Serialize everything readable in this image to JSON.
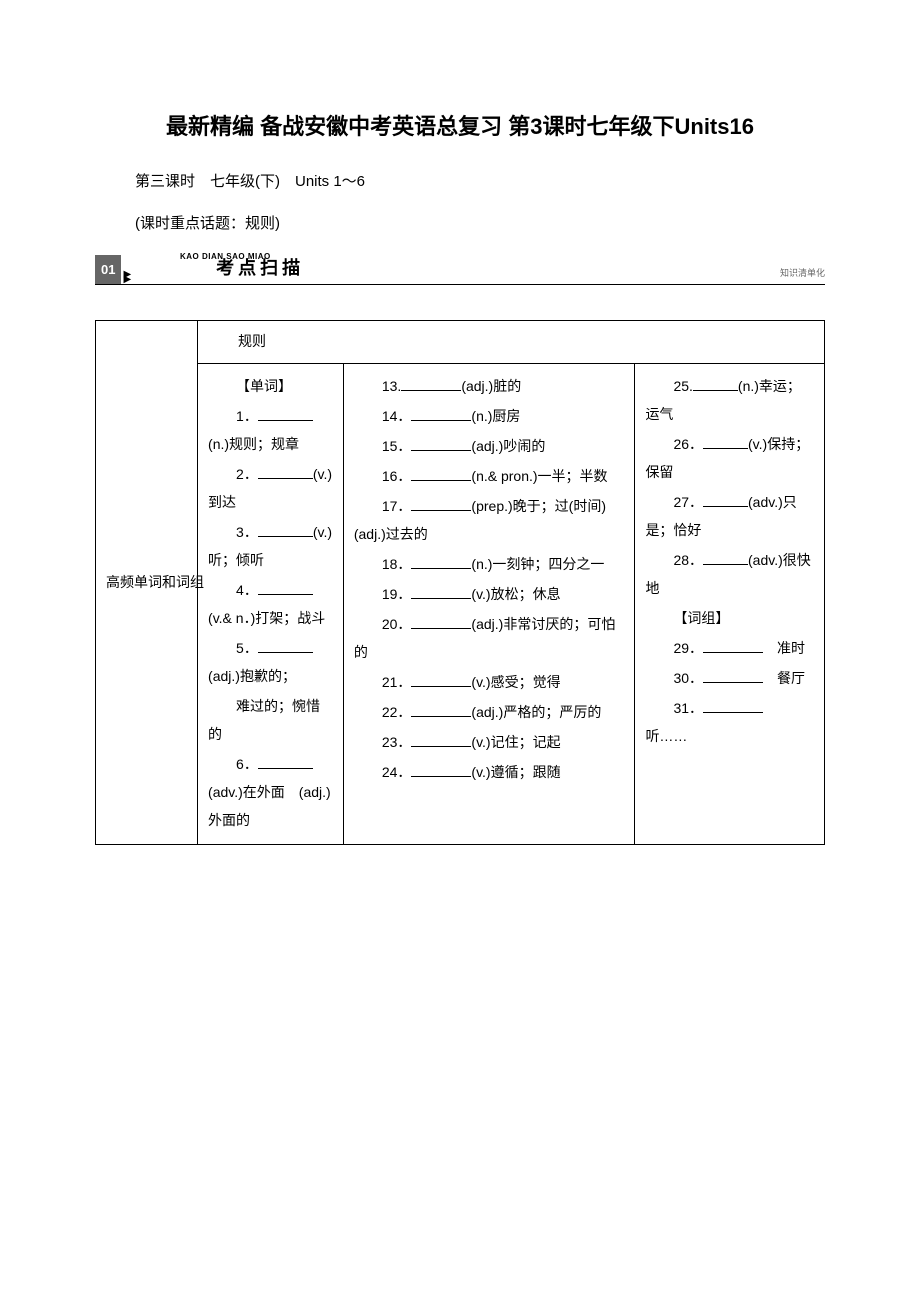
{
  "title": "最新精编 备战安徽中考英语总复习 第3课时七年级下Units16",
  "subtitle": "第三课时　七年级(下)　Units 1～6",
  "topic": "(课时重点话题：规则)",
  "section": {
    "num": "01",
    "pinyin": "KAO DIAN SAO MIAO",
    "title": "考点扫描",
    "rightLabel": "知识清单化"
  },
  "table": {
    "rowLabel": "高频单词和词组",
    "rule": "规则",
    "col1": {
      "header": "【单词】",
      "items": [
        {
          "n": "1．",
          "blank": true,
          "pos": "(n.)",
          "def": "规则；规章"
        },
        {
          "n": "2．",
          "blank": true,
          "pos": "(v.)",
          "def": "到达"
        },
        {
          "n": "3．",
          "blank": true,
          "pos": "(v.)",
          "def": "听；倾听"
        },
        {
          "n": "4．",
          "blank": true,
          "pos": "(v.& n．)",
          "def": "打架；战斗"
        },
        {
          "n": "5．",
          "blank": true,
          "pos": "(adj.)",
          "def": "抱歉的；"
        },
        {
          "n": "",
          "blank": false,
          "pos": "",
          "def": "难过的；惋惜的"
        },
        {
          "n": "6．",
          "blank": true,
          "pos": "(adv.)",
          "def": "在外面　(adj.)外面的"
        }
      ]
    },
    "col2": {
      "items": [
        {
          "n": "13.",
          "pos": "(adj.)",
          "def": "脏的"
        },
        {
          "n": "14．",
          "pos": "(n.)",
          "def": "厨房"
        },
        {
          "n": "15．",
          "pos": "(adj.)",
          "def": "吵闹的"
        },
        {
          "n": "16．",
          "pos": "(n.& pron.)",
          "def": "一半；半数"
        },
        {
          "n": "17．",
          "pos": "(prep.)",
          "def": "晚于；过(时间)　(adj.)过去的"
        },
        {
          "n": "18．",
          "pos": "(n.)",
          "def": "一刻钟；四分之一"
        },
        {
          "n": "19．",
          "pos": "(v.)",
          "def": "放松；休息"
        },
        {
          "n": "20．",
          "pos": "(adj.)",
          "def": "非常讨厌的；可怕的"
        },
        {
          "n": "21．",
          "pos": "(v.)",
          "def": "感受；觉得"
        },
        {
          "n": "22．",
          "pos": "(adj.)",
          "def": "严格的；严厉的"
        },
        {
          "n": "23．",
          "pos": "(v.)",
          "def": "记住；记起"
        },
        {
          "n": "24．",
          "pos": "(v.)",
          "def": "遵循；跟随"
        }
      ]
    },
    "col3": {
      "items": [
        {
          "n": "25.",
          "pos": "(n.)",
          "def": "幸运；运气"
        },
        {
          "n": "26．",
          "pos": "(v.)",
          "def": "保持；保留"
        },
        {
          "n": "27．",
          "pos": "(adv.)",
          "def": "只是；恰好"
        },
        {
          "n": "28．",
          "pos": "(adv.)",
          "def": "很快地"
        }
      ],
      "header2": "【词组】",
      "items2": [
        {
          "n": "29．",
          "def": "准时"
        },
        {
          "n": "30．",
          "def": "餐厅"
        },
        {
          "n": "31．",
          "def": "听……"
        }
      ]
    }
  }
}
